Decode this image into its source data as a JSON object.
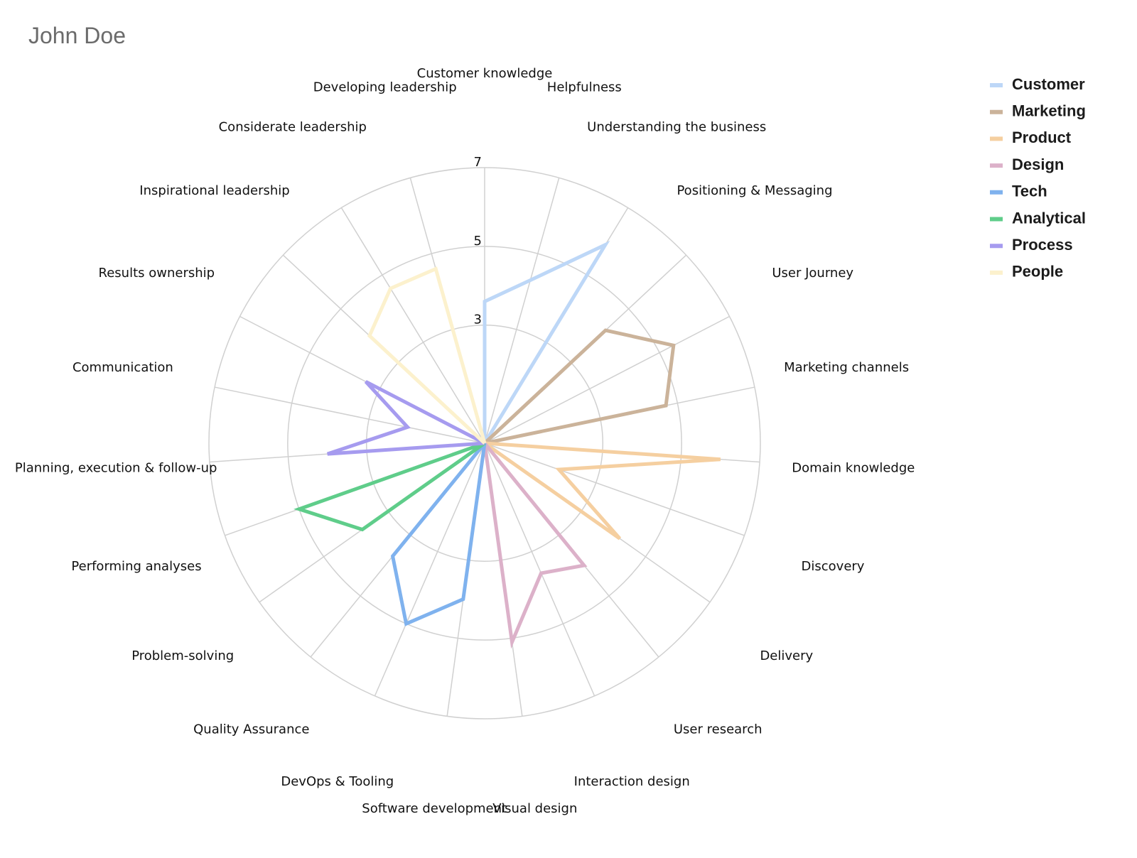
{
  "chart_title": "John Doe",
  "chart_data": {
    "type": "radar",
    "title": "John Doe",
    "range": [
      0,
      7
    ],
    "tick_labels": [
      "3",
      "5",
      "7"
    ],
    "grid": true,
    "legend_position": "top-right",
    "categories": [
      "Customer knowledge",
      "Helpfulness",
      "Understanding the business",
      "Positioning & Messaging",
      "User Journey",
      "Marketing channels",
      "Domain knowledge",
      "Discovery",
      "Delivery",
      "User research",
      "Interaction design",
      "Visual design",
      "Software development",
      "DevOps & Tooling",
      "Quality Assurance",
      "Problem-solving",
      "Performing analyses",
      "Planning, execution & follow-up",
      "Communication",
      "Results ownership",
      "Inspirational leadership",
      "Considerate leadership",
      "Developing leadership"
    ],
    "series": [
      {
        "name": "Customer",
        "color": "#bdd7f7",
        "values": {
          "0": 3.6,
          "1": 4.3,
          "2": 5.9
        }
      },
      {
        "name": "Marketing",
        "color": "#cbb39a",
        "values": {
          "3": 4.2,
          "4": 5.4,
          "5": 4.7
        }
      },
      {
        "name": "Product",
        "color": "#f5cfa0",
        "values": {
          "6": 6.0,
          "7": 2.0,
          "8": 4.2
        }
      },
      {
        "name": "Design",
        "color": "#dcb1c9",
        "values": {
          "9": 4.0,
          "10": 3.6,
          "11": 5.1
        }
      },
      {
        "name": "Tech",
        "color": "#7fb2ee",
        "values": {
          "12": 4.0,
          "13": 5.0,
          "14": 3.7
        }
      },
      {
        "name": "Analytical",
        "color": "#5fcd8a",
        "values": {
          "15": 3.8,
          "16": 5.0
        }
      },
      {
        "name": "Process",
        "color": "#a69bef",
        "values": {
          "17": 4.0,
          "18": 2.0,
          "19": 3.4
        }
      },
      {
        "name": "People",
        "color": "#fcf1cd",
        "values": {
          "20": 4.0,
          "21": 4.6,
          "22": 4.6
        }
      }
    ]
  }
}
